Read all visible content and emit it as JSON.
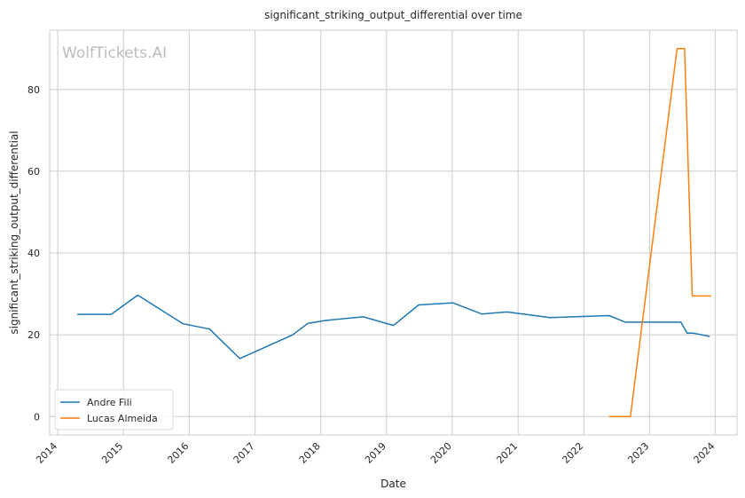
{
  "chart_data": {
    "type": "line",
    "title": "significant_striking_output_differential over time",
    "xlabel": "Date",
    "ylabel": "significant_striking_output_differential",
    "watermark": "WolfTickets.AI",
    "x_ticks": [
      "2014",
      "2015",
      "2016",
      "2017",
      "2018",
      "2019",
      "2020",
      "2021",
      "2022",
      "2023",
      "2024"
    ],
    "y_ticks": [
      "0",
      "20",
      "40",
      "60",
      "80"
    ],
    "xlim": [
      "2013-11-17",
      "2024-05-01"
    ],
    "ylim": [
      -4.5,
      94.5
    ],
    "grid": true,
    "legend_position": "lower-left",
    "series": [
      {
        "name": "Andre Fili",
        "color": "#1f77b4",
        "points": [
          [
            "2014-04-19",
            25.0
          ],
          [
            "2014-10-25",
            25.0
          ],
          [
            "2015-03-21",
            29.7
          ],
          [
            "2015-11-28",
            22.7
          ],
          [
            "2016-04-23",
            21.4
          ],
          [
            "2016-10-08",
            14.2
          ],
          [
            "2017-07-29",
            20.0
          ],
          [
            "2017-10-21",
            22.8
          ],
          [
            "2018-01-27",
            23.5
          ],
          [
            "2018-08-25",
            24.4
          ],
          [
            "2019-02-09",
            22.3
          ],
          [
            "2019-06-29",
            27.3
          ],
          [
            "2020-01-05",
            27.8
          ],
          [
            "2020-06-13",
            25.1
          ],
          [
            "2020-10-31",
            25.6
          ],
          [
            "2021-06-26",
            24.2
          ],
          [
            "2022-05-21",
            24.7
          ],
          [
            "2022-08-20",
            23.1
          ],
          [
            "2023-06-24",
            23.1
          ],
          [
            "2023-07-29",
            20.4
          ],
          [
            "2023-09-02",
            20.4
          ],
          [
            "2023-12-02",
            19.6
          ]
        ]
      },
      {
        "name": "Lucas Almeida",
        "color": "#ff7f0e",
        "points": [
          [
            "2022-05-21",
            0.0
          ],
          [
            "2022-09-17",
            0.0
          ],
          [
            "2023-06-03",
            90.0
          ],
          [
            "2023-07-15",
            90.0
          ],
          [
            "2023-08-26",
            29.5
          ],
          [
            "2023-12-09",
            29.5
          ]
        ]
      }
    ]
  }
}
